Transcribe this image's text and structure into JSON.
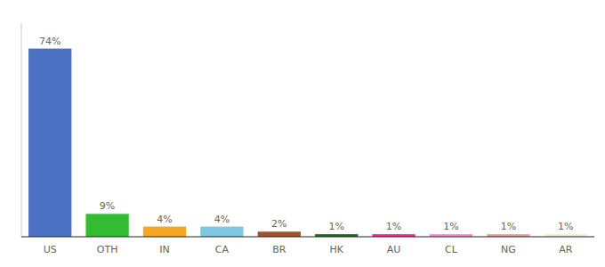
{
  "chart_data": {
    "type": "bar",
    "categories": [
      "US",
      "OTH",
      "IN",
      "CA",
      "BR",
      "HK",
      "AU",
      "CL",
      "NG",
      "AR"
    ],
    "values": [
      74,
      9,
      4,
      4,
      2,
      1,
      1,
      1,
      1,
      1
    ],
    "value_labels": [
      "74%",
      "9%",
      "4%",
      "4%",
      "2%",
      "1%",
      "1%",
      "1%",
      "1%",
      "1%"
    ],
    "colors": [
      "#4C72C4",
      "#33BB33",
      "#F5A623",
      "#7EC8E3",
      "#A0522D",
      "#1A6B1A",
      "#FF2299",
      "#FF88CC",
      "#E8A090",
      "#F0EDD5"
    ],
    "ylim": [
      0,
      84
    ],
    "data_labels": true,
    "tick_labels": "x",
    "grid": false
  }
}
